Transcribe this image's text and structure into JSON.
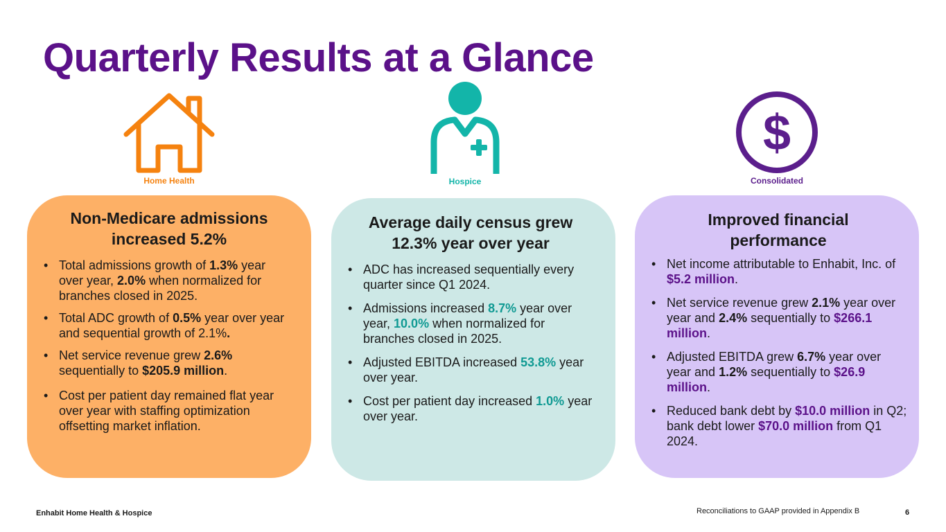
{
  "title": "Quarterly Results at a Glance",
  "colors": {
    "title": "#5b1189",
    "home_health": "#f5820f",
    "hospice": "#13b5a9",
    "consolidated": "#5b1e8c",
    "home_card": "#fdb066",
    "hospice_card": "#cde8e6",
    "consolidated_card": "#d7c5f7"
  },
  "segments": {
    "home_health": {
      "label": "Home Health",
      "icon": "house-icon",
      "heading": "Non-Medicare admissions increased 5.2%",
      "bullets": [
        {
          "parts": [
            "Total admissions growth of ",
            "1.3%",
            " year over year, ",
            "2.0%",
            " when normalized for branches closed in 2025."
          ]
        },
        {
          "parts": [
            "Total ADC growth of ",
            "0.5%",
            " year over year and sequential growth of 2.1%",
            ".",
            ""
          ]
        },
        {
          "parts": [
            "Net service revenue grew ",
            "2.6%",
            " sequentially to ",
            "$205.9 million",
            "."
          ]
        },
        {
          "parts": [
            "Cost per patient day remained flat year over year with staffing optimization offsetting market inflation."
          ]
        }
      ]
    },
    "hospice": {
      "label": "Hospice",
      "icon": "nurse-icon",
      "heading": "Average daily census grew 12.3% year over year",
      "bullets": [
        {
          "parts": [
            "ADC has increased sequentially every quarter since Q1 2024."
          ]
        },
        {
          "parts": [
            "Admissions increased ",
            "8.7%",
            " year over year, ",
            "10.0%",
            " when normalized for branches closed in 2025."
          ]
        },
        {
          "parts": [
            "Adjusted EBITDA increased ",
            "53.8%",
            " year over year."
          ]
        },
        {
          "parts": [
            "Cost per patient day increased ",
            "1.0%",
            " year over year."
          ]
        }
      ]
    },
    "consolidated": {
      "label": "Consolidated",
      "icon": "dollar-icon",
      "heading": "Improved financial performance",
      "bullets": [
        {
          "parts": [
            "Net income attributable to Enhabit, Inc. of ",
            "$5.2 million",
            "."
          ]
        },
        {
          "parts": [
            "Net service revenue grew ",
            "2.1%",
            " year over year and ",
            "2.4%",
            " sequentially to ",
            "$266.1 million",
            "."
          ]
        },
        {
          "parts": [
            "Adjusted EBITDA grew ",
            "6.7%",
            " year over year and ",
            "1.2%",
            " sequentially to ",
            "$26.9 million",
            "."
          ]
        },
        {
          "parts": [
            "Reduced bank debt by ",
            "$10.0 million",
            " in Q2; bank debt lower ",
            "$70.0 million",
            " from Q1 2024."
          ]
        }
      ]
    }
  },
  "footer": {
    "company": "Enhabit Home Health & Hospice",
    "note": "Reconciliations to GAAP provided in Appendix B",
    "page": "6"
  }
}
